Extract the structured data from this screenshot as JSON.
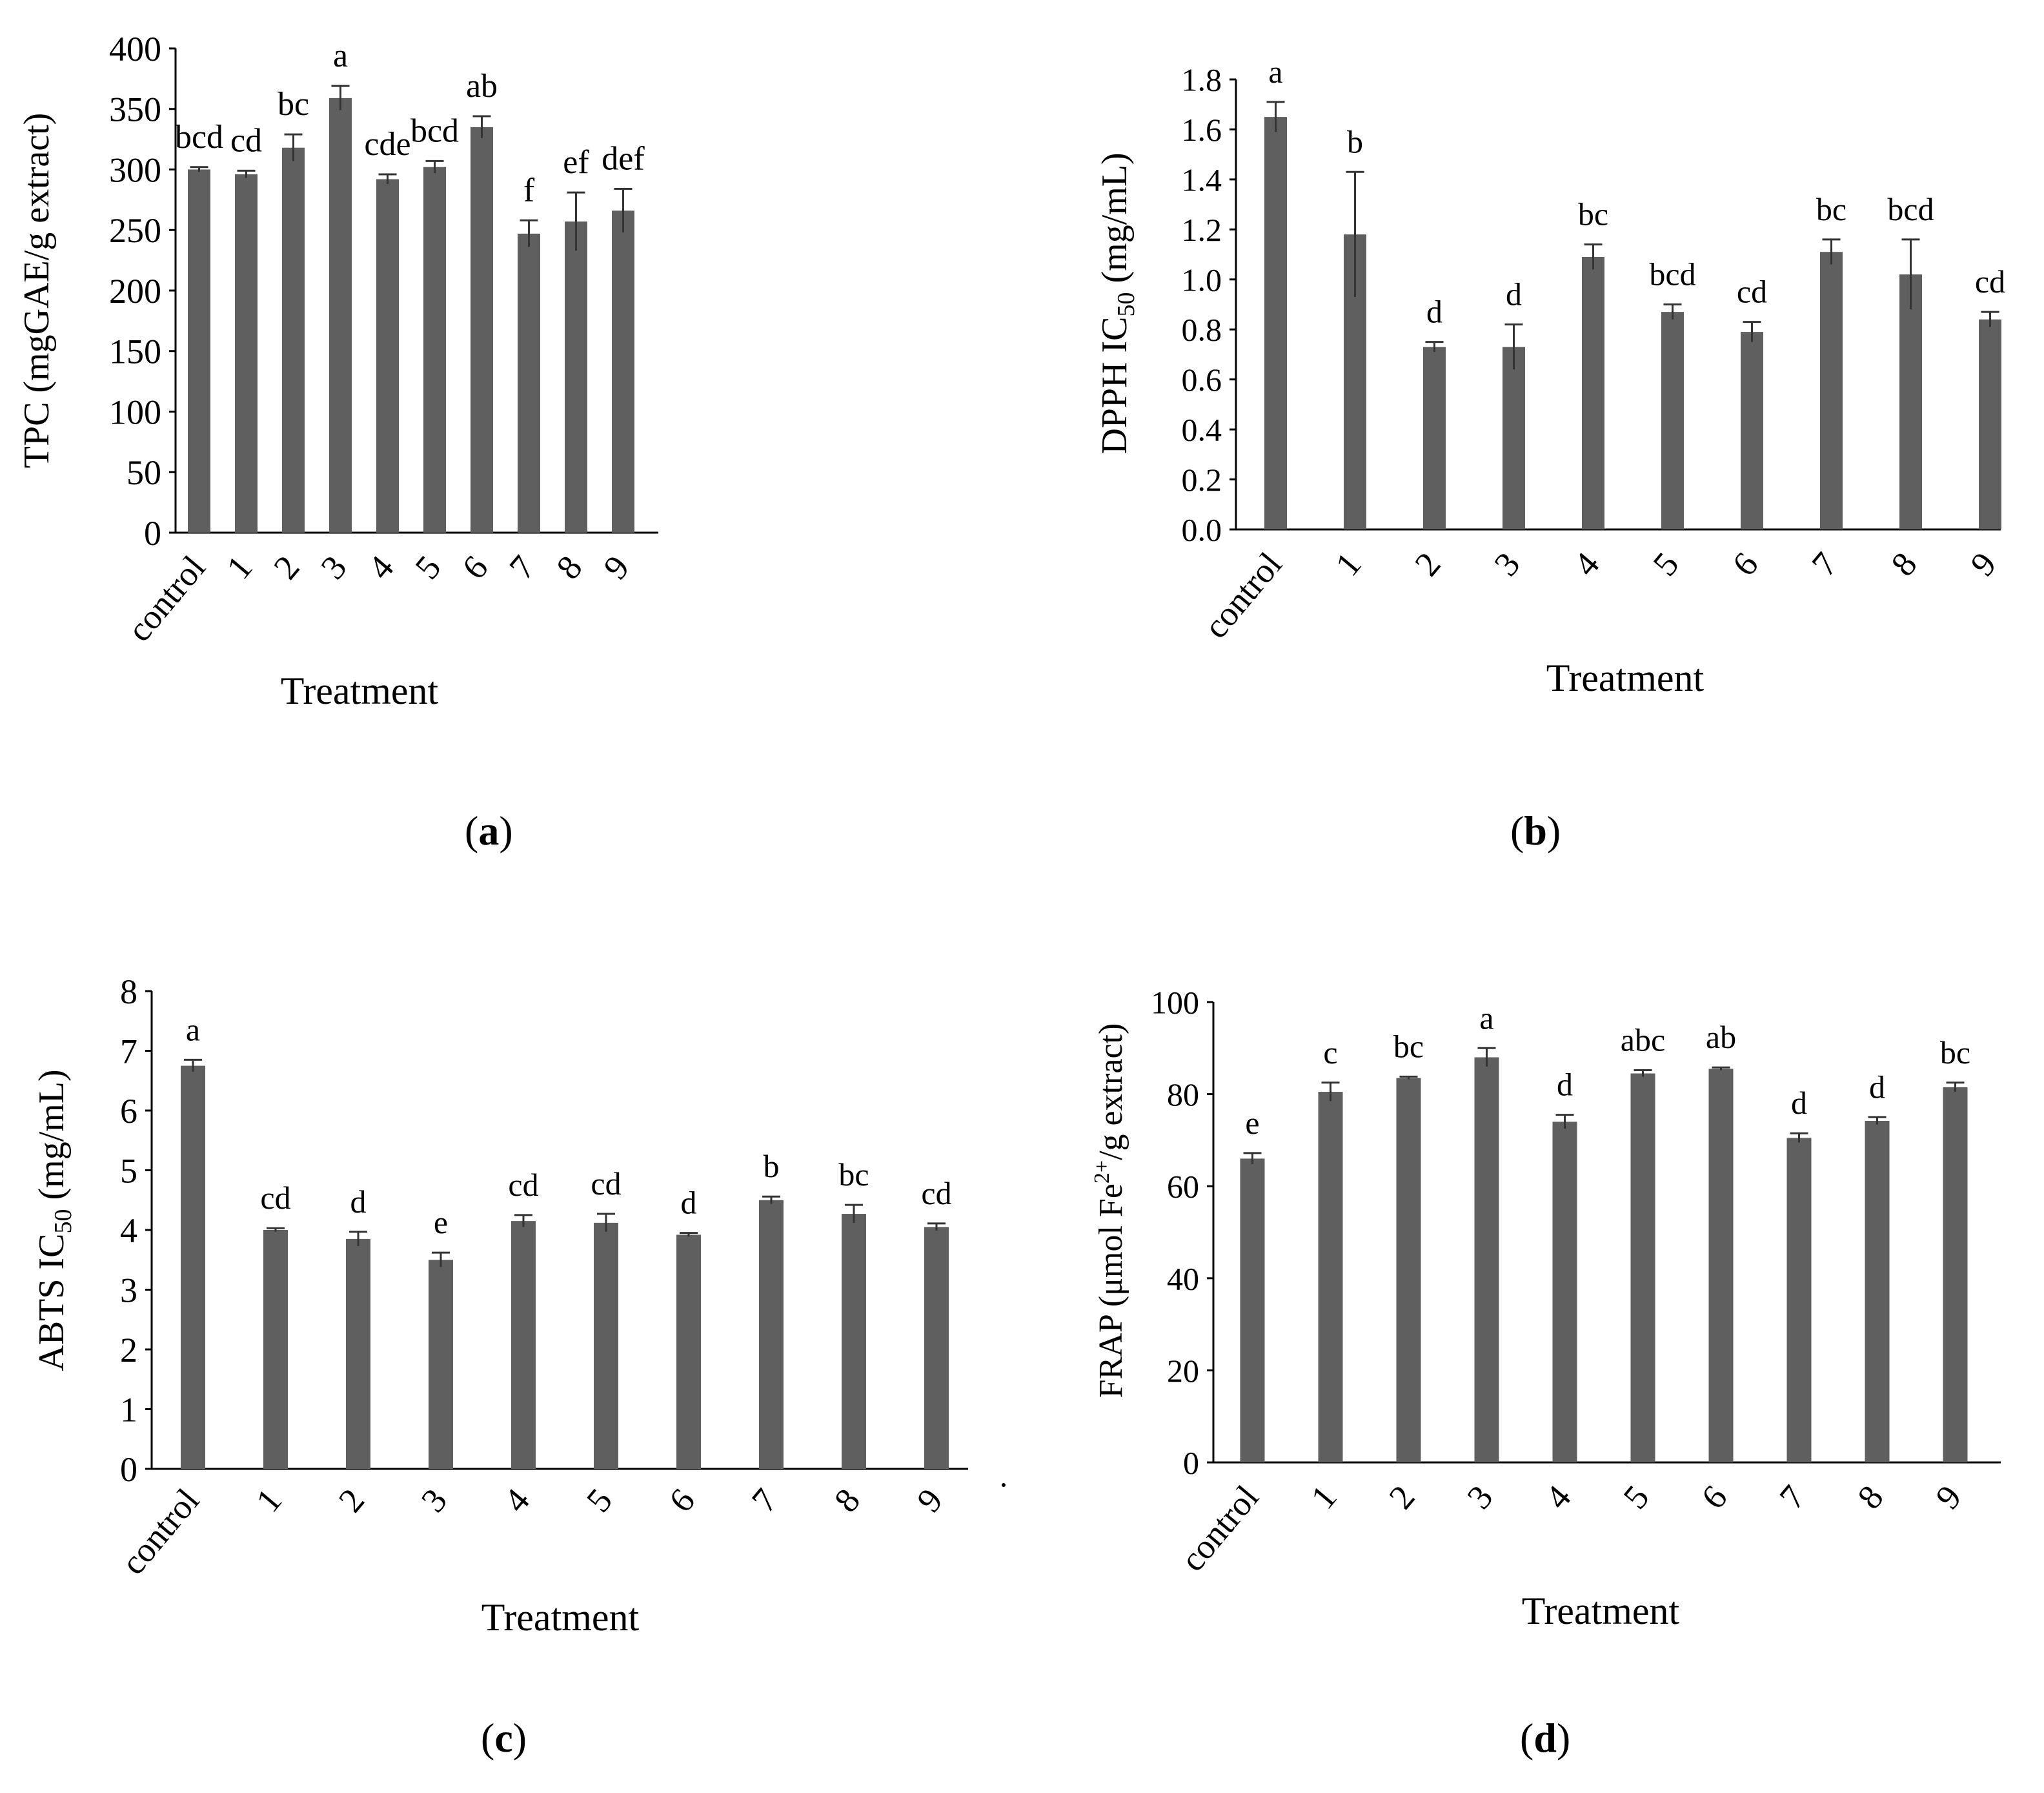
{
  "chart_data": [
    {
      "panel": "a",
      "type": "bar",
      "categories": [
        "control",
        "1",
        "2",
        "3",
        "4",
        "5",
        "6",
        "7",
        "8",
        "9"
      ],
      "values": [
        300,
        296,
        318,
        359,
        292,
        302,
        335,
        247,
        257,
        266
      ],
      "errors": [
        2,
        3,
        11,
        10,
        4,
        5,
        9,
        11,
        24,
        18
      ],
      "letters": [
        "bcd",
        "cd",
        "bc",
        "a",
        "cde",
        "bcd",
        "ab",
        "f",
        "ef",
        "def"
      ],
      "ylim": [
        0,
        400
      ],
      "yticks": [
        "0",
        "50",
        "100",
        "150",
        "200",
        "250",
        "300",
        "350",
        "400"
      ],
      "ylabel": "TPC (mgGAE/g extract)",
      "xlabel": "Treatment",
      "color": "#5f5f5f"
    },
    {
      "panel": "b",
      "type": "bar",
      "categories": [
        "control",
        "1",
        "2",
        "3",
        "4",
        "5",
        "6",
        "7",
        "8",
        "9"
      ],
      "values": [
        1.65,
        1.18,
        0.73,
        0.73,
        1.09,
        0.87,
        0.79,
        1.11,
        1.02,
        0.84
      ],
      "errors": [
        0.06,
        0.25,
        0.02,
        0.09,
        0.05,
        0.03,
        0.04,
        0.05,
        0.14,
        0.03
      ],
      "letters": [
        "a",
        "b",
        "d",
        "d",
        "bc",
        "bcd",
        "cd",
        "bc",
        "bcd",
        "cd"
      ],
      "ylim": [
        0,
        1.8
      ],
      "yticks": [
        "0.0",
        "0.2",
        "0.4",
        "0.6",
        "0.8",
        "1.0",
        "1.2",
        "1.4",
        "1.6",
        "1.8"
      ],
      "ylabel_main": "DPPH IC",
      "ylabel_sub": "50",
      "ylabel_tail": " (mg/mL)",
      "xlabel": "Treatment",
      "color": "#5f5f5f"
    },
    {
      "panel": "c",
      "type": "bar",
      "categories": [
        "control",
        "1",
        "2",
        "3",
        "4",
        "5",
        "6",
        "7",
        "8",
        "9"
      ],
      "values": [
        6.75,
        4.0,
        3.85,
        3.5,
        4.15,
        4.12,
        3.92,
        4.5,
        4.27,
        4.05
      ],
      "errors": [
        0.1,
        0.03,
        0.12,
        0.12,
        0.1,
        0.15,
        0.03,
        0.06,
        0.15,
        0.06
      ],
      "letters": [
        "a",
        "cd",
        "d",
        "e",
        "cd",
        "cd",
        "d",
        "b",
        "bc",
        "cd"
      ],
      "ylim": [
        0,
        8
      ],
      "yticks": [
        "0",
        "1",
        "2",
        "3",
        "4",
        "5",
        "6",
        "7",
        "8"
      ],
      "ylabel_main": "ABTS IC",
      "ylabel_sub": "50",
      "ylabel_tail": " (mg/mL)",
      "xlabel": "Treatment",
      "color": "#5f5f5f"
    },
    {
      "panel": "d",
      "type": "bar",
      "categories": [
        "control",
        "1",
        "2",
        "3",
        "4",
        "5",
        "6",
        "7",
        "8",
        "9"
      ],
      "values": [
        66,
        80.5,
        83.5,
        88,
        74,
        84.5,
        85.5,
        70.5,
        74.2,
        81.5
      ],
      "errors": [
        1.2,
        2.0,
        0.3,
        2.0,
        1.5,
        0.7,
        0.3,
        1.0,
        0.8,
        1.0
      ],
      "letters": [
        "e",
        "c",
        "bc",
        "a",
        "d",
        "abc",
        "ab",
        "d",
        "d",
        "bc"
      ],
      "ylim": [
        0,
        100
      ],
      "yticks": [
        "0",
        "20",
        "40",
        "60",
        "80",
        "100"
      ],
      "ylabel_main": "FRAP (μmol Fe",
      "ylabel_sup": "2+",
      "ylabel_tail": "/g extract)",
      "xlabel": "Treatment",
      "color": "#5f5f5f"
    }
  ],
  "captions": {
    "a": "a",
    "b": "b",
    "c": "c",
    "d": "d"
  }
}
